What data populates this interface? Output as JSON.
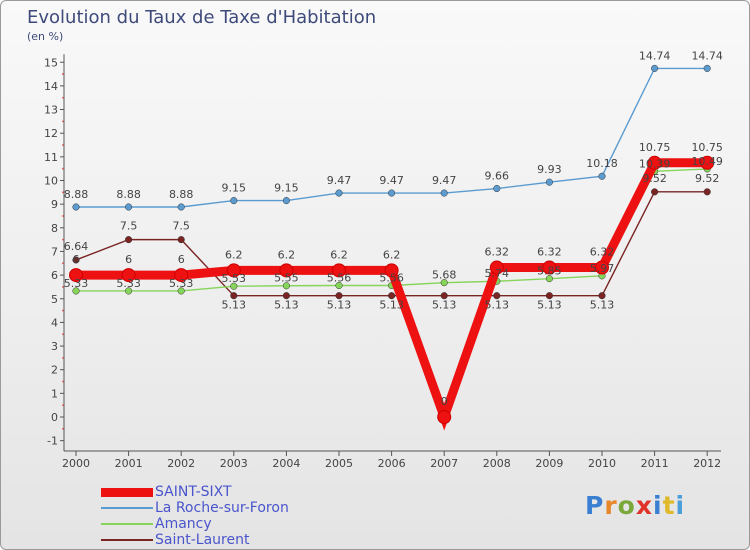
{
  "header": {
    "title": "Evolution du Taux de Taxe d'Habitation",
    "subtitle": "(en %)"
  },
  "brand": {
    "logo_text": "Proxiti",
    "logo_colors": [
      "#3a7fd1",
      "#e8862a",
      "#7aa83a",
      "#e0342b",
      "#3a7fd1",
      "#e0b92a",
      "#4a9fd9"
    ]
  },
  "chart_data": {
    "type": "line",
    "x": [
      "2000",
      "2001",
      "2002",
      "2003",
      "2004",
      "2005",
      "2006",
      "2007",
      "2008",
      "2009",
      "2010",
      "2011",
      "2012"
    ],
    "ylim": [
      -1,
      15
    ],
    "yticks": [
      "-1",
      "0",
      "1",
      "2",
      "3",
      "4",
      "5",
      "6",
      "7",
      "8",
      "9",
      "10",
      "11",
      "12",
      "13",
      "14",
      "15"
    ],
    "grid": false,
    "legend_position": "bottom-left",
    "series": [
      {
        "name": "Saint-Laurent",
        "color": "#7a2424",
        "values": [
          6.64,
          7.5,
          7.5,
          5.13,
          5.13,
          5.13,
          5.13,
          5.13,
          5.13,
          5.13,
          5.13,
          9.52,
          9.52
        ],
        "labels": [
          "6.64",
          "7.5",
          "7.5",
          "5.13",
          "5.13",
          "5.13",
          "5.13",
          "5.13",
          "5.13",
          "5.13",
          "5.13",
          "9.52",
          "9.52"
        ]
      },
      {
        "name": "Amancy",
        "color": "#86d45a",
        "values": [
          5.33,
          5.33,
          5.33,
          5.53,
          5.55,
          5.56,
          5.56,
          5.68,
          5.74,
          5.85,
          5.97,
          10.39,
          10.49
        ],
        "labels": [
          "5.33",
          "5.33",
          "5.33",
          "5.53",
          "5.55",
          "5.56",
          "5.56",
          "5.68",
          "5.74",
          "5.85",
          "5.97",
          "10.39",
          "10.49"
        ]
      },
      {
        "name": "La Roche-sur-Foron",
        "color": "#5b9bd0",
        "values": [
          8.88,
          8.88,
          8.88,
          9.15,
          9.15,
          9.47,
          9.47,
          9.47,
          9.66,
          9.93,
          10.18,
          14.74,
          14.74
        ],
        "labels": [
          "8.88",
          "8.88",
          "8.88",
          "9.15",
          "9.15",
          "9.47",
          "9.47",
          "9.47",
          "9.66",
          "9.93",
          "10.18",
          "14.74",
          "14.74"
        ]
      },
      {
        "name": "SAINT-SIXT",
        "color": "#ee1111",
        "values": [
          6,
          6,
          6,
          6.2,
          6.2,
          6.2,
          6.2,
          0,
          6.32,
          6.32,
          6.32,
          10.75,
          10.75
        ],
        "labels": [
          "6",
          "6",
          "6",
          "6.2",
          "6.2",
          "6.2",
          "6.2",
          "0",
          "6.32",
          "6.32",
          "6.32",
          "10.75",
          "10.75"
        ]
      }
    ]
  },
  "legend": {
    "items": [
      {
        "label": "SAINT-SIXT",
        "color": "#ee1111",
        "thickness": 9
      },
      {
        "label": "La Roche-sur-Foron",
        "color": "#5b9bd0",
        "thickness": 2
      },
      {
        "label": "Amancy",
        "color": "#86d45a",
        "thickness": 2
      },
      {
        "label": "Saint-Laurent",
        "color": "#7a2424",
        "thickness": 2
      }
    ]
  }
}
